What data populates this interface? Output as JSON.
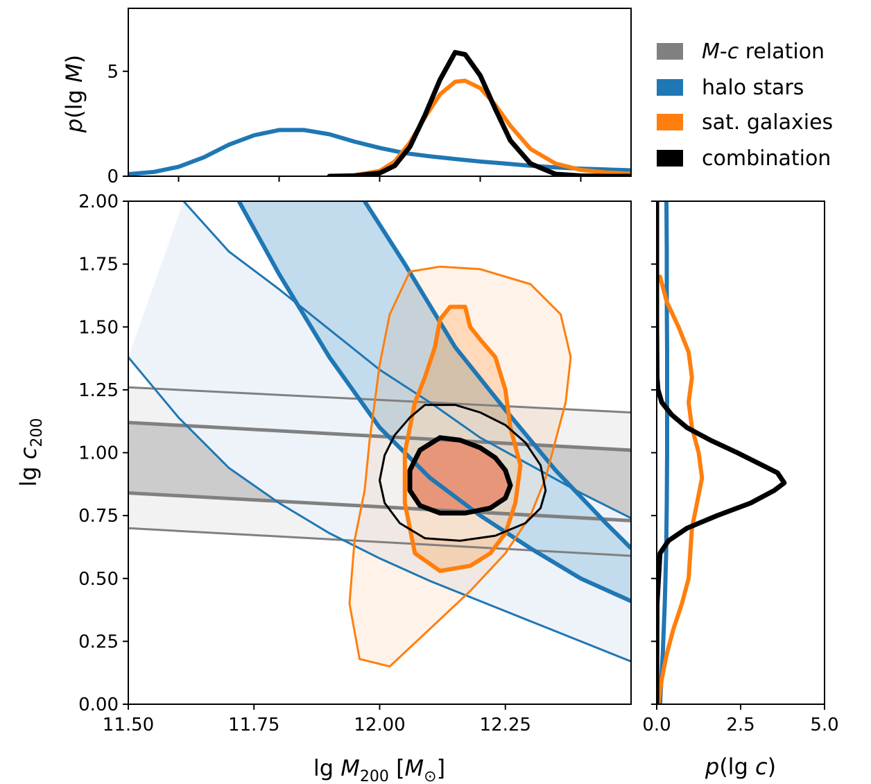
{
  "colors": {
    "mc_relation": "#808080",
    "halo_stars": "#1f77b4",
    "sat_galaxies": "#ff7f0e",
    "combination": "#000000",
    "combination_fill": "#e8967a"
  },
  "legend": {
    "placement": "top-right",
    "entries": [
      {
        "key": "mc_relation",
        "prefix_italic_1": "M",
        "dash": "-",
        "prefix_italic_2": "c",
        "suffix": " relation"
      },
      {
        "key": "halo_stars",
        "label": "halo stars"
      },
      {
        "key": "sat_galaxies",
        "label": "sat. galaxies"
      },
      {
        "key": "combination",
        "label": "combination"
      }
    ]
  },
  "top_panel": {
    "ylabel": {
      "p": "p",
      "open": "(lg ",
      "m": "M",
      "close": ")"
    },
    "xlim": [
      11.5,
      12.5
    ],
    "ylim": [
      0,
      8
    ],
    "yticks": [
      0,
      5
    ],
    "xticks": [
      11.6,
      11.8,
      12.0,
      12.2,
      12.4
    ]
  },
  "main_panel": {
    "xlabel": {
      "lg": "lg ",
      "m": "M",
      "sub": "200",
      "unit_open": " [",
      "unit_m": "M",
      "unit_sub": "⊙",
      "unit_close": "]"
    },
    "ylabel": {
      "lg": "lg ",
      "c": "c",
      "sub": "200"
    },
    "xlim": [
      11.5,
      12.5
    ],
    "ylim": [
      0.0,
      2.0
    ],
    "xticks": [
      "11.50",
      "11.75",
      "12.00",
      "12.25"
    ],
    "xtick_values": [
      11.5,
      11.75,
      12.0,
      12.25
    ],
    "yticks": [
      "0.00",
      "0.25",
      "0.50",
      "0.75",
      "1.00",
      "1.25",
      "1.50",
      "1.75",
      "2.00"
    ],
    "ytick_values": [
      0,
      0.25,
      0.5,
      0.75,
      1.0,
      1.25,
      1.5,
      1.75,
      2.0
    ]
  },
  "right_panel": {
    "xlabel": {
      "p": "p",
      "open": "(lg ",
      "c": "c",
      "close": ")"
    },
    "xlim": [
      0,
      5
    ],
    "xticks": [
      "0.0",
      "2.5",
      "5.0"
    ],
    "xtick_values": [
      0,
      2.5,
      5
    ]
  },
  "chart_data": [
    {
      "type": "line",
      "panel": "top",
      "xlabel": "",
      "ylabel": "p(lg M)",
      "series": [
        {
          "key": "halo_stars",
          "x": [
            11.5,
            11.55,
            11.6,
            11.65,
            11.7,
            11.75,
            11.8,
            11.85,
            11.9,
            11.95,
            12.0,
            12.05,
            12.1,
            12.15,
            12.2,
            12.25,
            12.3,
            12.35,
            12.4,
            12.45,
            12.5
          ],
          "y": [
            0.1,
            0.2,
            0.45,
            0.9,
            1.5,
            1.95,
            2.2,
            2.2,
            2.0,
            1.65,
            1.35,
            1.1,
            0.95,
            0.82,
            0.7,
            0.6,
            0.5,
            0.42,
            0.36,
            0.32,
            0.28
          ]
        },
        {
          "key": "sat_galaxies",
          "x": [
            11.9,
            11.95,
            12.0,
            12.03,
            12.06,
            12.09,
            12.12,
            12.15,
            12.17,
            12.2,
            12.23,
            12.26,
            12.3,
            12.35,
            12.4,
            12.45,
            12.5
          ],
          "y": [
            0.0,
            0.05,
            0.25,
            0.7,
            1.6,
            2.8,
            3.9,
            4.5,
            4.55,
            4.2,
            3.4,
            2.4,
            1.3,
            0.6,
            0.3,
            0.18,
            0.12
          ]
        },
        {
          "key": "combination",
          "x": [
            11.9,
            11.95,
            12.0,
            12.03,
            12.06,
            12.09,
            12.12,
            12.15,
            12.17,
            12.2,
            12.23,
            12.26,
            12.3,
            12.35,
            12.4,
            12.45,
            12.5
          ],
          "y": [
            0.0,
            0.02,
            0.15,
            0.5,
            1.4,
            2.9,
            4.6,
            5.9,
            5.8,
            4.8,
            3.2,
            1.7,
            0.6,
            0.1,
            0.02,
            0.0,
            0.0
          ]
        }
      ]
    },
    {
      "type": "area",
      "panel": "main",
      "xlabel": "lg M200 [M⊙]",
      "ylabel": "lg c200",
      "series": [
        {
          "key": "mc_relation",
          "level": "outer",
          "x": [
            11.5,
            12.5
          ],
          "upper": [
            1.26,
            1.16
          ],
          "lower": [
            0.7,
            0.59
          ]
        },
        {
          "key": "mc_relation",
          "level": "inner",
          "x": [
            11.5,
            12.5
          ],
          "upper": [
            1.12,
            1.01
          ],
          "lower": [
            0.84,
            0.73
          ]
        },
        {
          "key": "halo_stars",
          "level": "outer",
          "upper_x": [
            11.61,
            11.7,
            11.8,
            11.9,
            12.0,
            12.1,
            12.2,
            12.3,
            12.4,
            12.5
          ],
          "upper_y": [
            2.0,
            1.8,
            1.65,
            1.49,
            1.33,
            1.2,
            1.06,
            0.95,
            0.84,
            0.74
          ],
          "lower_x": [
            11.5,
            11.6,
            11.7,
            11.8,
            11.9,
            12.0,
            12.1,
            12.2,
            12.3,
            12.4,
            12.5
          ],
          "lower_y": [
            1.38,
            1.14,
            0.94,
            0.8,
            0.68,
            0.58,
            0.49,
            0.41,
            0.33,
            0.25,
            0.17
          ]
        },
        {
          "key": "halo_stars",
          "level": "inner",
          "upper_x": [
            11.97,
            12.05,
            12.15,
            12.25,
            12.35,
            12.45,
            12.5
          ],
          "upper_y": [
            2.0,
            1.75,
            1.42,
            1.17,
            0.93,
            0.72,
            0.62
          ],
          "lower_x": [
            11.72,
            11.8,
            11.9,
            12.0,
            12.1,
            12.2,
            12.3,
            12.4,
            12.5
          ],
          "lower_y": [
            2.0,
            1.71,
            1.38,
            1.1,
            0.9,
            0.75,
            0.62,
            0.5,
            0.41
          ]
        },
        {
          "key": "sat_galaxies",
          "level": "outer",
          "x": [
            12.06,
            12.12,
            12.2,
            12.3,
            12.36,
            12.38,
            12.37,
            12.35,
            12.33,
            12.3,
            12.25,
            12.18,
            12.1,
            12.02,
            11.96,
            11.94,
            11.95,
            11.97,
            11.98,
            11.99,
            12.0,
            12.02,
            12.06
          ],
          "y": [
            1.72,
            1.74,
            1.73,
            1.67,
            1.55,
            1.38,
            1.2,
            1.05,
            0.9,
            0.75,
            0.6,
            0.45,
            0.3,
            0.15,
            0.18,
            0.4,
            0.65,
            0.85,
            1.05,
            1.2,
            1.35,
            1.55,
            1.72
          ]
        },
        {
          "key": "sat_galaxies",
          "level": "inner",
          "x": [
            12.12,
            12.14,
            12.17,
            12.18,
            12.2,
            12.23,
            12.25,
            12.26,
            12.28,
            12.27,
            12.25,
            12.22,
            12.18,
            12.12,
            12.07,
            12.05,
            12.05,
            12.07,
            12.09,
            12.11,
            12.12
          ],
          "y": [
            1.53,
            1.58,
            1.58,
            1.5,
            1.45,
            1.38,
            1.25,
            1.1,
            0.95,
            0.8,
            0.68,
            0.6,
            0.55,
            0.53,
            0.6,
            0.8,
            1.0,
            1.2,
            1.3,
            1.42,
            1.53
          ]
        },
        {
          "key": "combination",
          "level": "outer",
          "x": [
            12.09,
            12.15,
            12.2,
            12.25,
            12.29,
            12.32,
            12.33,
            12.32,
            12.29,
            12.23,
            12.16,
            12.09,
            12.04,
            12.01,
            12.0,
            12.01,
            12.03,
            12.06,
            12.09
          ],
          "y": [
            1.19,
            1.19,
            1.16,
            1.11,
            1.04,
            0.95,
            0.85,
            0.78,
            0.72,
            0.67,
            0.65,
            0.66,
            0.72,
            0.8,
            0.89,
            0.99,
            1.07,
            1.14,
            1.19
          ]
        },
        {
          "key": "combination",
          "level": "inner",
          "x": [
            12.12,
            12.16,
            12.2,
            12.23,
            12.25,
            12.26,
            12.25,
            12.22,
            12.17,
            12.12,
            12.08,
            12.06,
            12.06,
            12.08,
            12.12
          ],
          "y": [
            1.06,
            1.05,
            1.02,
            0.98,
            0.93,
            0.87,
            0.82,
            0.78,
            0.76,
            0.76,
            0.79,
            0.85,
            0.93,
            1.01,
            1.06
          ]
        }
      ]
    },
    {
      "type": "line",
      "panel": "right",
      "xlabel": "p(lg c)",
      "ylabel": "",
      "series": [
        {
          "key": "halo_stars",
          "c": [
            0.0,
            0.2,
            0.4,
            0.6,
            0.8,
            1.0,
            1.2,
            1.4,
            1.6,
            1.8,
            2.0
          ],
          "p": [
            0.1,
            0.18,
            0.24,
            0.28,
            0.3,
            0.31,
            0.31,
            0.31,
            0.3,
            0.3,
            0.29
          ]
        },
        {
          "key": "sat_galaxies",
          "c": [
            0.0,
            0.1,
            0.2,
            0.3,
            0.4,
            0.5,
            0.6,
            0.7,
            0.8,
            0.9,
            1.0,
            1.1,
            1.2,
            1.3,
            1.4,
            1.5,
            1.6,
            1.7
          ],
          "p": [
            0.05,
            0.15,
            0.3,
            0.5,
            0.75,
            0.95,
            1.0,
            1.05,
            1.2,
            1.35,
            1.25,
            1.05,
            0.95,
            1.05,
            0.95,
            0.65,
            0.3,
            0.1
          ]
        },
        {
          "key": "combination",
          "c": [
            0.0,
            0.4,
            0.6,
            0.65,
            0.7,
            0.75,
            0.8,
            0.85,
            0.88,
            0.92,
            0.96,
            1.0,
            1.05,
            1.1,
            1.15,
            1.2,
            1.25,
            1.3,
            1.5,
            2.0
          ],
          "p": [
            0.0,
            0.01,
            0.1,
            0.35,
            0.9,
            1.8,
            2.8,
            3.5,
            3.8,
            3.6,
            3.0,
            2.4,
            1.6,
            0.9,
            0.45,
            0.15,
            0.04,
            0.01,
            0.0,
            0.0
          ]
        }
      ]
    }
  ]
}
